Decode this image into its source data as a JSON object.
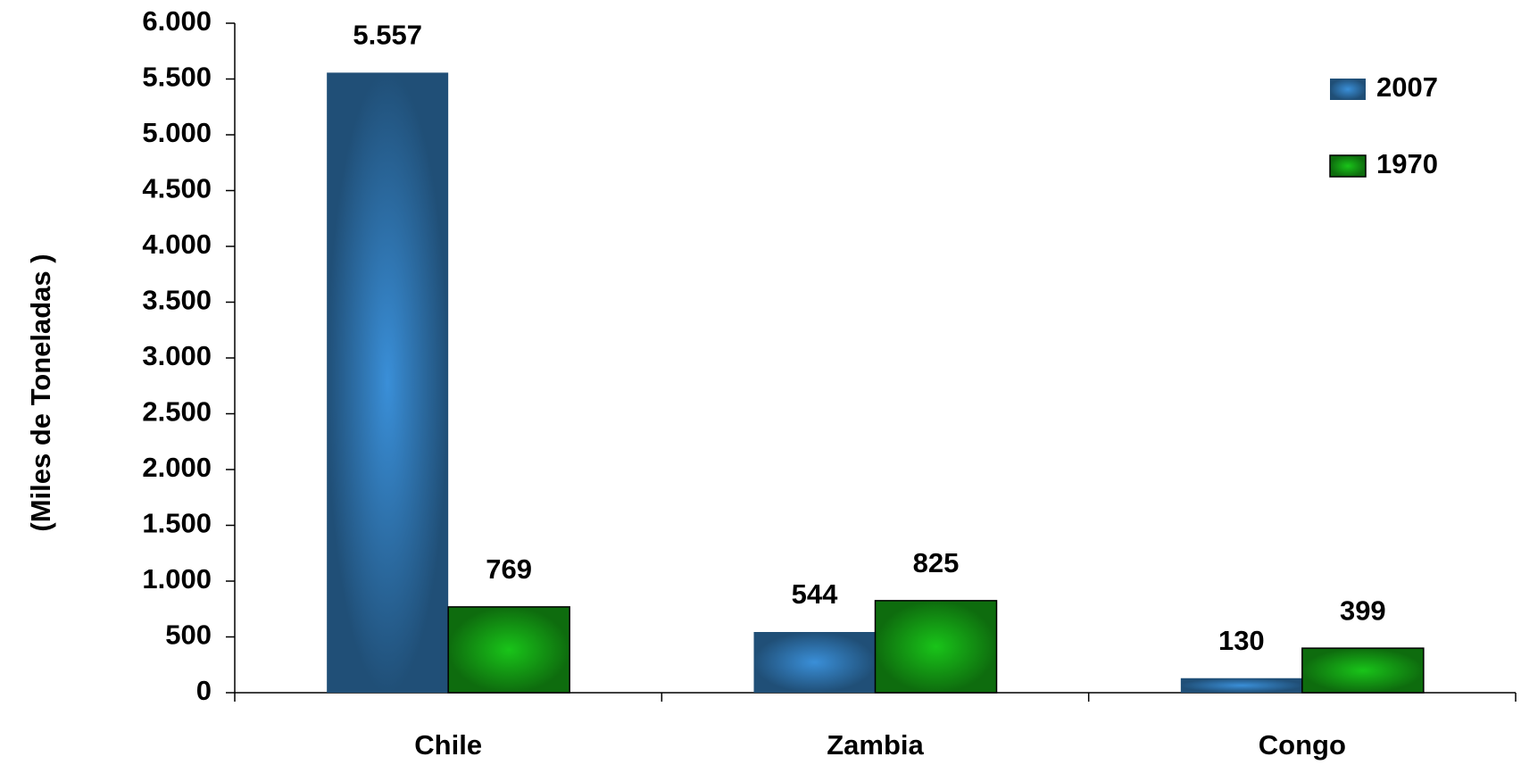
{
  "chart_data": {
    "type": "bar",
    "y_label": "(Miles de Toneladas )",
    "categories": [
      "Chile",
      "Zambia",
      "Congo"
    ],
    "series": [
      {
        "name": "2007",
        "color": "#3a8fd8",
        "values": [
          5557,
          544,
          130
        ],
        "value_labels": [
          "5.557",
          "544",
          "130"
        ]
      },
      {
        "name": "1970",
        "color": "#19c419",
        "values": [
          769,
          825,
          399
        ]
      }
    ],
    "ylim": [
      0,
      6000
    ],
    "yticks": [
      0,
      500,
      {
        "value": 1000,
        "label": "1.000"
      },
      {
        "value": 1500,
        "label": "1.500"
      },
      {
        "value": 2000,
        "label": "2.000"
      },
      {
        "value": 2500,
        "label": "2.500"
      },
      {
        "value": 3000,
        "label": "3.000"
      },
      {
        "value": 3500,
        "label": "3.500"
      },
      {
        "value": 4000,
        "label": "4.000"
      },
      {
        "value": 4500,
        "label": "4.500"
      },
      {
        "value": 5000,
        "label": "5.000"
      },
      {
        "value": 5500,
        "label": "5.500"
      },
      {
        "value": 6000,
        "label": "6.000"
      }
    ],
    "legend": "top-right"
  }
}
